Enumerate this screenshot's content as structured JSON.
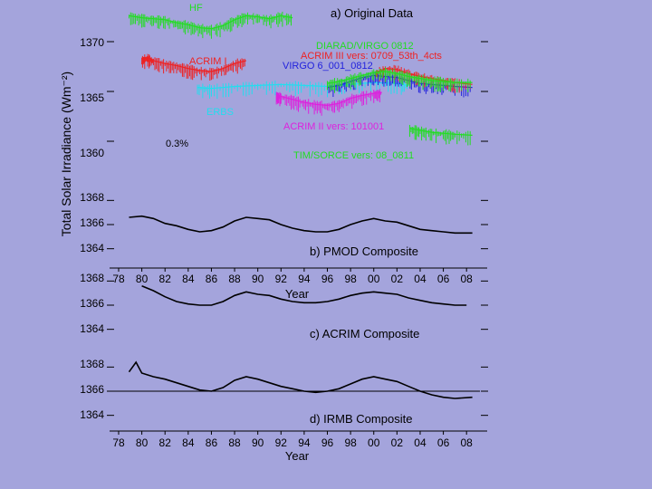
{
  "figure": {
    "ylabel": "Total Solar Irradiance (Wm⁻²)",
    "background": "#a4a4dc"
  },
  "chart_data": [
    {
      "type": "line",
      "panel": "a",
      "title": "a) Original Data",
      "yticks": [
        1370,
        1365,
        1360
      ],
      "ylim": [
        1356,
        1374
      ],
      "xlim": [
        1978,
        2009
      ],
      "annotation": "0.3%",
      "series": [
        {
          "name": "HF",
          "color": "#22dd22",
          "x": [
            1978.9,
            1980,
            1981,
            1982,
            1983,
            1984,
            1985,
            1986,
            1987,
            1988,
            1989,
            1990,
            1991,
            1992,
            1993
          ],
          "y": [
            1372.6,
            1372.4,
            1372.3,
            1372.2,
            1371.9,
            1371.7,
            1371.4,
            1371.3,
            1371.6,
            1372.2,
            1372.6,
            1372.5,
            1372.3,
            1372.6,
            1372.4
          ]
        },
        {
          "name": "ACRIM I",
          "color": "#ee2222",
          "x": [
            1980,
            1980.5,
            1981,
            1982,
            1983,
            1984,
            1985,
            1986,
            1987,
            1988,
            1989
          ],
          "y": [
            1368.2,
            1368.4,
            1368.1,
            1367.8,
            1367.6,
            1367.3,
            1367.1,
            1367.0,
            1367.3,
            1367.8,
            1368.1
          ]
        },
        {
          "name": "ERBS",
          "color": "#22ddee",
          "x": [
            1984.8,
            1986,
            1988,
            1990,
            1992,
            1994,
            1996,
            1998,
            2000,
            2002,
            2003
          ],
          "y": [
            1365.4,
            1365.3,
            1365.5,
            1365.6,
            1365.7,
            1365.6,
            1365.5,
            1365.7,
            1365.9,
            1365.8,
            1365.6
          ]
        },
        {
          "name": "ACRIM II vers: 101001",
          "color": "#dd22dd",
          "x": [
            1991.6,
            1992,
            1993,
            1994,
            1995,
            1996,
            1997,
            1998,
            1999,
            2000,
            2000.7
          ],
          "y": [
            1364.6,
            1364.5,
            1364.2,
            1363.9,
            1363.7,
            1363.6,
            1363.8,
            1364.3,
            1364.6,
            1364.8,
            1364.9
          ]
        },
        {
          "name": "VIRGO 6_001_0812",
          "color": "#2222dd",
          "x": [
            1996,
            1997,
            1998,
            1999,
            2000,
            2001,
            2002,
            2003,
            2004,
            2005,
            2006,
            2007,
            2008.5
          ],
          "y": [
            1365.4,
            1365.6,
            1366.0,
            1366.4,
            1366.6,
            1366.5,
            1366.4,
            1366.1,
            1365.8,
            1365.7,
            1365.6,
            1365.5,
            1365.4
          ]
        },
        {
          "name": "ACRIM III vers: 0709_53th_4cts",
          "color": "#ee2222",
          "x": [
            2000.2,
            2001,
            2002,
            2003,
            2004,
            2005,
            2006,
            2007,
            2008.5
          ],
          "y": [
            1366.9,
            1367.3,
            1367.2,
            1366.8,
            1366.5,
            1366.3,
            1366.1,
            1365.9,
            1365.7
          ]
        },
        {
          "name": "DIARAD/VIRGO 0812",
          "color": "#22dd22",
          "x": [
            1996,
            1997,
            1998,
            1999,
            2000,
            2001,
            2002,
            2003,
            2004,
            2005,
            2006,
            2007,
            2008.5
          ],
          "y": [
            1365.8,
            1366.0,
            1366.3,
            1366.6,
            1366.9,
            1367.0,
            1366.8,
            1366.5,
            1366.3,
            1366.1,
            1366.0,
            1365.9,
            1365.9
          ]
        },
        {
          "name": "TIM/SORCE vers: 08_0811",
          "color": "#22dd22",
          "x": [
            2003.1,
            2004,
            2005,
            2006,
            2007,
            2008.5
          ],
          "y": [
            1361.3,
            1361.1,
            1360.9,
            1360.8,
            1360.7,
            1360.6
          ]
        }
      ]
    },
    {
      "type": "line",
      "panel": "b",
      "title": "b) PMOD Composite",
      "yticks": [
        1368,
        1366,
        1364
      ],
      "ylim": [
        1363,
        1369
      ],
      "xlim": [
        1978,
        2009
      ],
      "series": [
        {
          "name": "PMOD Composite",
          "color": "#000000",
          "x": [
            1978.9,
            1980,
            1981,
            1982,
            1983,
            1984,
            1985,
            1986,
            1987,
            1988,
            1989,
            1990,
            1991,
            1992,
            1993,
            1994,
            1995,
            1996,
            1997,
            1998,
            1999,
            2000,
            2001,
            2002,
            2003,
            2004,
            2005,
            2006,
            2007,
            2008.5
          ],
          "y": [
            1366.6,
            1366.7,
            1366.5,
            1366.1,
            1365.9,
            1365.6,
            1365.4,
            1365.5,
            1365.8,
            1366.3,
            1366.6,
            1366.5,
            1366.4,
            1366.0,
            1365.7,
            1365.5,
            1365.4,
            1365.4,
            1365.6,
            1366.0,
            1366.3,
            1366.5,
            1366.3,
            1366.2,
            1365.9,
            1365.6,
            1365.5,
            1365.4,
            1365.3,
            1365.3
          ]
        }
      ]
    },
    {
      "type": "line",
      "panel": "c",
      "title": "c) ACRIM Composite",
      "yticks": [
        1368,
        1366,
        1364
      ],
      "ylim": [
        1363,
        1369
      ],
      "xlim": [
        1978,
        2009
      ],
      "xticks": [
        "78",
        "80",
        "82",
        "84",
        "86",
        "88",
        "90",
        "92",
        "94",
        "96",
        "98",
        "00",
        "02",
        "04",
        "06",
        "08"
      ],
      "xlabel": "Year",
      "series": [
        {
          "name": "ACRIM Composite",
          "color": "#000000",
          "x": [
            1980,
            1981,
            1982,
            1983,
            1984,
            1985,
            1986,
            1987,
            1988,
            1989,
            1990,
            1991,
            1992,
            1993,
            1994,
            1995,
            1996,
            1997,
            1998,
            1999,
            2000,
            2001,
            2002,
            2003,
            2004,
            2005,
            2006,
            2007,
            2008
          ],
          "y": [
            1367.6,
            1367.2,
            1366.7,
            1366.3,
            1366.1,
            1366.0,
            1366.0,
            1366.3,
            1366.8,
            1367.1,
            1366.9,
            1366.8,
            1366.5,
            1366.3,
            1366.2,
            1366.2,
            1366.3,
            1366.5,
            1366.8,
            1367.0,
            1367.1,
            1367.0,
            1366.9,
            1366.6,
            1366.4,
            1366.2,
            1366.1,
            1366.0,
            1366.0
          ]
        }
      ]
    },
    {
      "type": "line",
      "panel": "d",
      "title": "d) IRMB Composite",
      "yticks": [
        1368,
        1366,
        1364
      ],
      "ylim": [
        1363,
        1369
      ],
      "xlim": [
        1978,
        2009
      ],
      "xticks": [
        "78",
        "80",
        "82",
        "84",
        "86",
        "88",
        "90",
        "92",
        "94",
        "96",
        "98",
        "00",
        "02",
        "04",
        "06",
        "08"
      ],
      "xlabel": "Year",
      "series": [
        {
          "name": "IRMB Composite",
          "color": "#000000",
          "x": [
            1978.9,
            1979.5,
            1980,
            1981,
            1982,
            1983,
            1984,
            1985,
            1986,
            1987,
            1988,
            1989,
            1990,
            1991,
            1992,
            1993,
            1994,
            1995,
            1996,
            1997,
            1998,
            1999,
            2000,
            2001,
            2002,
            2003,
            2004,
            2005,
            2006,
            2007,
            2008.5
          ],
          "y": [
            1367.6,
            1368.4,
            1367.5,
            1367.2,
            1367.0,
            1366.7,
            1366.4,
            1366.1,
            1366.0,
            1366.3,
            1366.9,
            1367.2,
            1367.0,
            1366.7,
            1366.4,
            1366.2,
            1366.0,
            1365.9,
            1366.0,
            1366.2,
            1366.6,
            1367.0,
            1367.2,
            1367.0,
            1366.8,
            1366.4,
            1366.0,
            1365.7,
            1365.5,
            1365.4,
            1365.5
          ]
        }
      ]
    }
  ]
}
